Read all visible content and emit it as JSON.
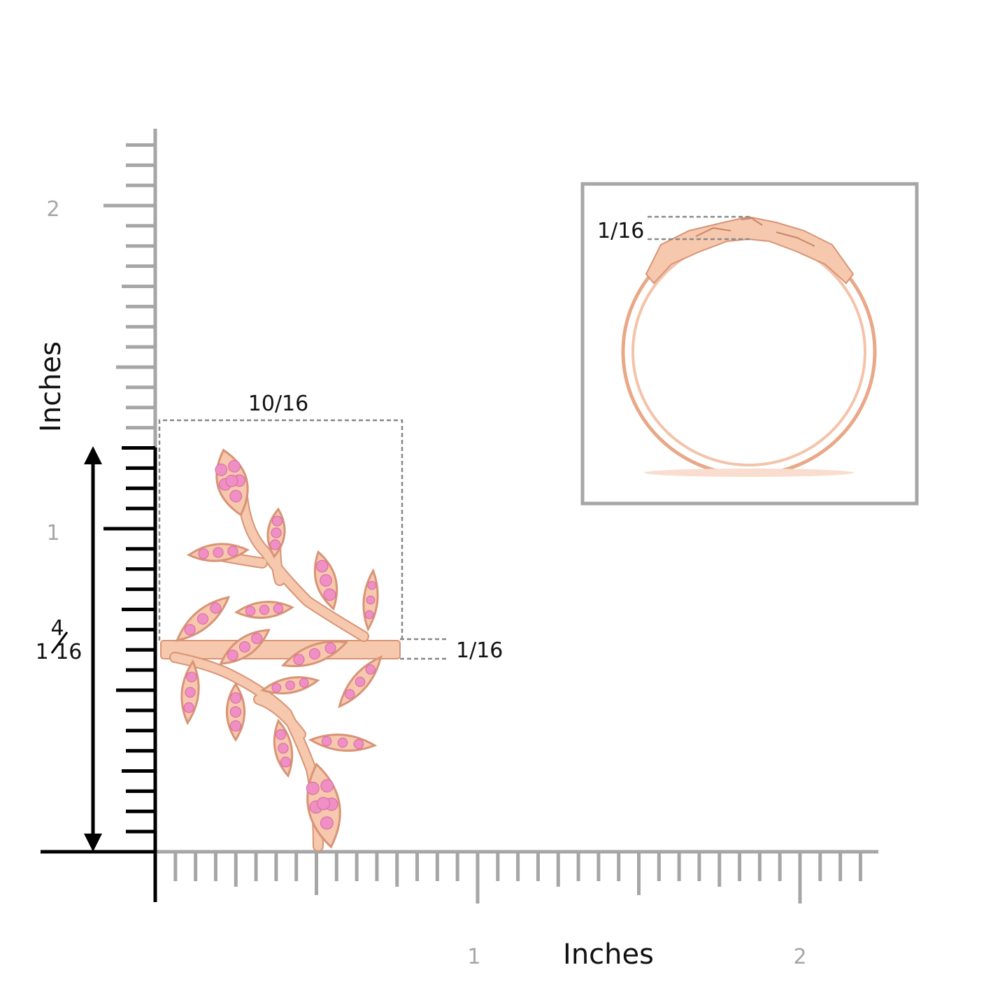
{
  "axes": {
    "y_title": "Inches",
    "x_title": "Inches",
    "y_tick_labels": [
      "2",
      "1"
    ],
    "x_tick_labels": [
      "1",
      "2"
    ]
  },
  "dimensions": {
    "width_label": "10/16",
    "height_label_top": "4",
    "height_label_bottom": "1 16",
    "shank_thickness_label": "1/16",
    "profile_thickness_label": "1/16"
  },
  "product": {
    "image_name": "ring-top-view",
    "profile_name": "ring-side-view",
    "metal_color": "#f6c8ad",
    "metal_outline": "#d89476",
    "stone_color": "#ef8fc3"
  },
  "colors": {
    "ruler_gray": "#a6a6a6",
    "axis_black": "#000000",
    "frame_gray": "#a6a6a6"
  }
}
